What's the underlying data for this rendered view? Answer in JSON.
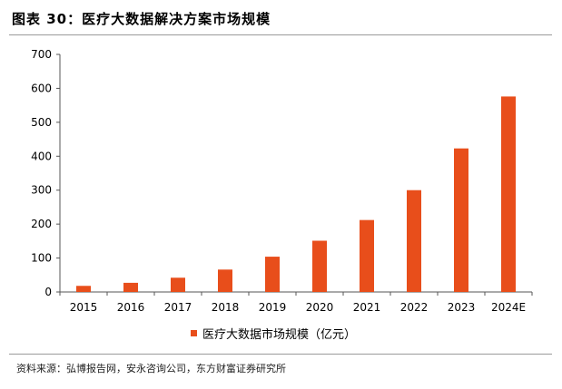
{
  "header": {
    "title": "图表 30：医疗大数据解决方案市场规模"
  },
  "footer": {
    "source": "资料来源：弘博报告网，安永咨询公司，东方财富证券研究所"
  },
  "chart_data": {
    "type": "bar",
    "title": "图表 30：医疗大数据解决方案市场规模",
    "xlabel": "",
    "ylabel": "",
    "categories": [
      "2015",
      "2016",
      "2017",
      "2018",
      "2019",
      "2020",
      "2021",
      "2022",
      "2023",
      "2024E"
    ],
    "series": [
      {
        "name": "医疗大数据市场规模（亿元）",
        "values": [
          18,
          27,
          42,
          66,
          104,
          151,
          212,
          300,
          423,
          576
        ]
      }
    ],
    "ylim": [
      0,
      700
    ],
    "yticks": [
      0,
      100,
      200,
      300,
      400,
      500,
      600,
      700
    ],
    "bar_color": "#e84e1b",
    "grid": false,
    "legend": "bottom"
  }
}
